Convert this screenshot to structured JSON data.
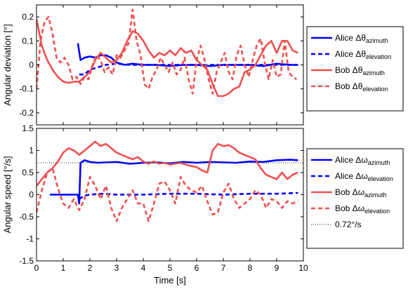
{
  "chart_data": [
    {
      "type": "line",
      "ylabel": "Angular deviation [°]",
      "xlabel": "",
      "xlim": [
        0,
        10
      ],
      "ylim": [
        -0.25,
        0.25
      ],
      "xticks": [
        0,
        1,
        2,
        3,
        4,
        5,
        6,
        7,
        8,
        9,
        10
      ],
      "yticks": [
        -0.2,
        -0.1,
        0,
        0.1,
        0.2
      ],
      "ytick_labels": [
        "-0.2",
        "-0.1",
        "0",
        "0.1",
        "0.2"
      ],
      "grid": false,
      "legend_position": "right",
      "series": [
        {
          "label_main": "Alice Δθ",
          "label_sub": "azimuth",
          "color": "#0000ff",
          "dash": "solid",
          "x": [
            1.55,
            1.65,
            1.8,
            2.0,
            2.2,
            2.4,
            2.6,
            2.8,
            3.0,
            3.3,
            3.6,
            4.0,
            4.5,
            5.0,
            5.5,
            6.0,
            6.5,
            7.0,
            7.5,
            8.0,
            8.5,
            9.0,
            9.5,
            9.8
          ],
          "y": [
            0.09,
            0.02,
            0.03,
            0.035,
            0.03,
            0.04,
            0.04,
            0.03,
            0.01,
            0.0,
            0.005,
            0.0,
            0.0,
            -0.005,
            0.0,
            0.0,
            -0.005,
            0.0,
            0.0,
            0.0,
            -0.005,
            0.005,
            0.0,
            0.0
          ]
        },
        {
          "label_main": "Alice Δθ",
          "label_sub": "elevation",
          "color": "#0000ff",
          "dash": "dashed",
          "x": [
            1.6,
            1.8,
            2.0,
            2.3,
            2.6,
            3.0,
            3.5,
            4.0,
            5.0,
            6.0,
            7.0,
            8.0,
            9.0,
            9.8
          ],
          "y": [
            -0.04,
            -0.04,
            -0.02,
            -0.01,
            0.0,
            0.005,
            0.0,
            0.0,
            0.0,
            0.0,
            0.0,
            0.0,
            0.0,
            0.0
          ]
        },
        {
          "label_main": "Bob Δθ",
          "label_sub": "azimuth",
          "color": "#f05050",
          "dash": "solid",
          "x": [
            0,
            0.2,
            0.4,
            0.6,
            0.8,
            1.0,
            1.2,
            1.4,
            1.6,
            1.8,
            2.0,
            2.2,
            2.4,
            2.6,
            2.8,
            3.0,
            3.2,
            3.4,
            3.6,
            3.8,
            4.0,
            4.2,
            4.4,
            4.6,
            4.8,
            5.0,
            5.2,
            5.4,
            5.6,
            5.8,
            6.0,
            6.2,
            6.4,
            6.6,
            6.8,
            7.0,
            7.2,
            7.4,
            7.6,
            7.8,
            8.0,
            8.2,
            8.4,
            8.6,
            8.8,
            9.0,
            9.2,
            9.4,
            9.6,
            9.8
          ],
          "y": [
            0.19,
            0.08,
            0.02,
            -0.02,
            -0.05,
            -0.07,
            -0.075,
            -0.07,
            -0.07,
            -0.05,
            -0.03,
            0.02,
            0.05,
            0.03,
            0.01,
            0.02,
            0.05,
            0.1,
            0.14,
            0.13,
            0.1,
            0.06,
            0.03,
            0.05,
            0.04,
            0.06,
            0.04,
            0.07,
            0.05,
            0.06,
            0.02,
            0.0,
            -0.02,
            -0.08,
            -0.13,
            -0.13,
            -0.12,
            -0.1,
            -0.09,
            -0.03,
            -0.02,
            0.0,
            0.04,
            0.08,
            0.1,
            0.05,
            0.1,
            0.1,
            0.06,
            0.05
          ]
        },
        {
          "label_main": "Bob Δθ",
          "label_sub": "elevation",
          "color": "#f05050",
          "dash": "dashed",
          "x": [
            0,
            0.15,
            0.3,
            0.45,
            0.6,
            0.75,
            0.9,
            1.05,
            1.2,
            1.35,
            1.5,
            1.65,
            1.8,
            1.95,
            2.1,
            2.25,
            2.4,
            2.55,
            2.7,
            2.85,
            3.0,
            3.15,
            3.3,
            3.45,
            3.6,
            3.75,
            3.9,
            4.05,
            4.2,
            4.35,
            4.5,
            4.65,
            4.8,
            4.95,
            5.1,
            5.25,
            5.4,
            5.55,
            5.7,
            5.85,
            6.0,
            6.15,
            6.3,
            6.45,
            6.6,
            6.75,
            6.9,
            7.05,
            7.2,
            7.35,
            7.5,
            7.65,
            7.8,
            7.95,
            8.1,
            8.25,
            8.4,
            8.55,
            8.7,
            8.85,
            9.0,
            9.15,
            9.3,
            9.45,
            9.6,
            9.75
          ],
          "y": [
            -0.1,
            0.1,
            0.18,
            0.2,
            0.13,
            0.03,
            0.01,
            0.03,
            0.0,
            -0.06,
            -0.05,
            -0.08,
            -0.05,
            -0.06,
            0.0,
            0.04,
            0.02,
            -0.03,
            -0.01,
            -0.04,
            0.04,
            0.03,
            0.06,
            0.09,
            0.23,
            0.1,
            0.04,
            -0.08,
            -0.1,
            -0.05,
            -0.02,
            0.03,
            0.0,
            -0.03,
            0.01,
            -0.04,
            -0.02,
            0.03,
            -0.06,
            -0.12,
            0.02,
            0.08,
            0.02,
            -0.06,
            -0.12,
            -0.03,
            0.01,
            0.05,
            -0.03,
            -0.06,
            0.04,
            0.08,
            0.0,
            -0.05,
            0.02,
            0.08,
            0.11,
            0.01,
            -0.06,
            0.02,
            -0.05,
            -0.04,
            0.1,
            -0.03,
            -0.05,
            -0.06
          ]
        }
      ]
    },
    {
      "type": "line",
      "ylabel": "Angular speed [°/s]",
      "xlabel": "Time [s]",
      "xlim": [
        0,
        10
      ],
      "ylim": [
        -1.5,
        1.5
      ],
      "xticks": [
        0,
        1,
        2,
        3,
        4,
        5,
        6,
        7,
        8,
        9,
        10
      ],
      "yticks": [
        -1.5,
        -1,
        -0.5,
        0,
        0.5,
        1,
        1.5
      ],
      "ytick_labels": [
        "-1.5",
        "-1",
        "-0.5",
        "0",
        "0.5",
        "1",
        "1.5"
      ],
      "grid": false,
      "legend_position": "right",
      "series": [
        {
          "label_main": "Alice Δω",
          "label_sub": "azimuth",
          "color": "#0000ff",
          "dash": "solid",
          "x": [
            0.5,
            1.55,
            1.6,
            1.65,
            1.8,
            2.0,
            2.3,
            2.6,
            3.0,
            3.5,
            4.0,
            4.5,
            5.0,
            5.5,
            6.0,
            6.5,
            7.0,
            7.5,
            8.0,
            8.5,
            9.0,
            9.5,
            9.8
          ],
          "y": [
            0,
            0,
            -0.2,
            0.72,
            0.78,
            0.74,
            0.72,
            0.73,
            0.74,
            0.7,
            0.72,
            0.73,
            0.71,
            0.74,
            0.72,
            0.74,
            0.73,
            0.72,
            0.75,
            0.74,
            0.78,
            0.79,
            0.78
          ]
        },
        {
          "label_main": "Alice Δω",
          "label_sub": "elevation",
          "color": "#0000ff",
          "dash": "dashed",
          "x": [
            1.6,
            1.8,
            2.0,
            2.5,
            3.0,
            4.0,
            5.0,
            6.0,
            7.0,
            8.0,
            9.0,
            9.8
          ],
          "y": [
            -0.1,
            -0.02,
            0.0,
            0.02,
            0.0,
            0.0,
            0.02,
            0.02,
            0.0,
            0.02,
            0.02,
            0.04
          ]
        },
        {
          "label_main": "Bob Δω",
          "label_sub": "azimuth",
          "color": "#f05050",
          "dash": "solid",
          "x": [
            0,
            0.2,
            0.4,
            0.6,
            0.8,
            1.0,
            1.2,
            1.4,
            1.6,
            1.8,
            2.0,
            2.2,
            2.4,
            2.6,
            2.8,
            3.0,
            3.2,
            3.4,
            3.6,
            3.8,
            4.0,
            4.2,
            4.4,
            4.6,
            4.8,
            5.0,
            5.2,
            5.4,
            5.6,
            5.8,
            6.0,
            6.2,
            6.4,
            6.6,
            6.8,
            7.0,
            7.2,
            7.4,
            7.6,
            7.8,
            8.0,
            8.2,
            8.4,
            8.6,
            8.8,
            9.0,
            9.2,
            9.4,
            9.6,
            9.8
          ],
          "y": [
            0.2,
            0.35,
            0.5,
            0.6,
            0.75,
            0.95,
            1.05,
            1.0,
            0.9,
            1.0,
            1.1,
            1.2,
            1.1,
            1.15,
            1.05,
            0.95,
            0.9,
            0.85,
            0.8,
            0.85,
            0.75,
            0.7,
            0.75,
            0.7,
            0.72,
            0.68,
            0.7,
            0.72,
            0.68,
            0.65,
            0.62,
            0.55,
            0.5,
            1.0,
            1.15,
            1.1,
            1.12,
            1.05,
            0.95,
            0.9,
            0.85,
            0.8,
            0.6,
            0.45,
            0.4,
            0.35,
            0.5,
            0.35,
            0.45,
            0.5
          ]
        },
        {
          "label_main": "Bob Δω",
          "label_sub": "elevation",
          "color": "#f05050",
          "dash": "dashed",
          "x": [
            0,
            0.2,
            0.4,
            0.6,
            0.8,
            1.0,
            1.2,
            1.4,
            1.6,
            1.8,
            2.0,
            2.2,
            2.4,
            2.6,
            2.8,
            3.0,
            3.2,
            3.4,
            3.6,
            3.8,
            4.0,
            4.2,
            4.4,
            4.6,
            4.8,
            5.0,
            5.2,
            5.4,
            5.6,
            5.8,
            6.0,
            6.2,
            6.4,
            6.6,
            6.8,
            7.0,
            7.2,
            7.4,
            7.6,
            7.8,
            8.0,
            8.2,
            8.4,
            8.6,
            8.8,
            9.0,
            9.2,
            9.4,
            9.6,
            9.8
          ],
          "y": [
            -0.4,
            0.1,
            0.5,
            0.6,
            0.15,
            -0.2,
            -0.3,
            -0.1,
            -0.35,
            -0.1,
            0.4,
            0.2,
            -0.1,
            0.2,
            -0.3,
            -0.6,
            -0.3,
            -0.1,
            0.1,
            -0.2,
            -0.2,
            -0.6,
            -0.2,
            0.25,
            0.3,
            0.1,
            -0.2,
            0.4,
            0.2,
            0.1,
            0.05,
            0.2,
            -0.15,
            -0.45,
            -0.4,
            0.05,
            0.25,
            -0.1,
            -0.3,
            -0.2,
            -0.1,
            0.1,
            0.0,
            -0.3,
            -0.1,
            -0.15,
            -0.3,
            -0.15,
            -0.2,
            -0.15
          ]
        },
        {
          "label_main": "0.72°/s",
          "label_sub": "",
          "color": "#555555",
          "dash": "dotted",
          "constant_y": 0.72
        }
      ]
    }
  ]
}
